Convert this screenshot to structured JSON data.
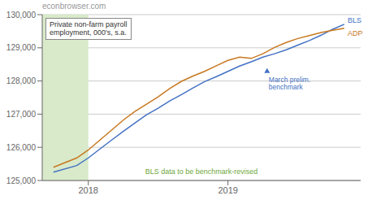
{
  "chart_data": {
    "type": "line",
    "title": "econbrowser.com",
    "ylabel": "Private non-farm payroll\nemployment, 000's, s.a.",
    "x": [
      2017.75,
      2017.917,
      2018.0,
      2018.083,
      2018.167,
      2018.25,
      2018.333,
      2018.417,
      2018.5,
      2018.583,
      2018.667,
      2018.75,
      2018.833,
      2018.917,
      2019.0,
      2019.083,
      2019.167,
      2019.25,
      2019.333,
      2019.417,
      2019.5,
      2019.583,
      2019.667,
      2019.75,
      2019.833
    ],
    "series": [
      {
        "name": "BLS",
        "color": "#4472c4",
        "values": [
          125250,
          125450,
          125680,
          125950,
          126220,
          126480,
          126730,
          126980,
          127180,
          127400,
          127590,
          127790,
          127980,
          128130,
          128290,
          128450,
          128580,
          128720,
          128820,
          128940,
          129080,
          129220,
          129380,
          129560,
          129710
        ]
      },
      {
        "name": "ADP",
        "color": "#c87820",
        "values": [
          125400,
          125680,
          125920,
          126220,
          126520,
          126820,
          127080,
          127300,
          127520,
          127770,
          127990,
          128150,
          128290,
          128460,
          128620,
          128720,
          128680,
          128820,
          129010,
          129160,
          129280,
          129370,
          129460,
          129530,
          129590
        ]
      }
    ],
    "xlim": [
      2017.67,
      2019.95
    ],
    "xticks": [
      2018,
      2019
    ],
    "ylim": [
      125000,
      130000
    ],
    "yticks": [
      {
        "value": 125000,
        "label": "125,000"
      },
      {
        "value": 126000,
        "label": "126,000"
      },
      {
        "value": 127000,
        "label": "127,000"
      },
      {
        "value": 128000,
        "label": "128,000"
      },
      {
        "value": 129000,
        "label": "129,000"
      },
      {
        "value": 130000,
        "label": "130,000"
      }
    ],
    "grid": true,
    "spans": [
      {
        "x0": 2017.67,
        "x1": 2018.0,
        "color": "#d8eaca"
      }
    ],
    "annotations": [
      {
        "text": "March prelim.\nbenchmark",
        "x": 2019.28,
        "y": 128300,
        "marker": "triangle",
        "color": "#4472c4"
      },
      {
        "text": "BLS data to be benchmark-revised",
        "color": "#70a840"
      }
    ]
  }
}
